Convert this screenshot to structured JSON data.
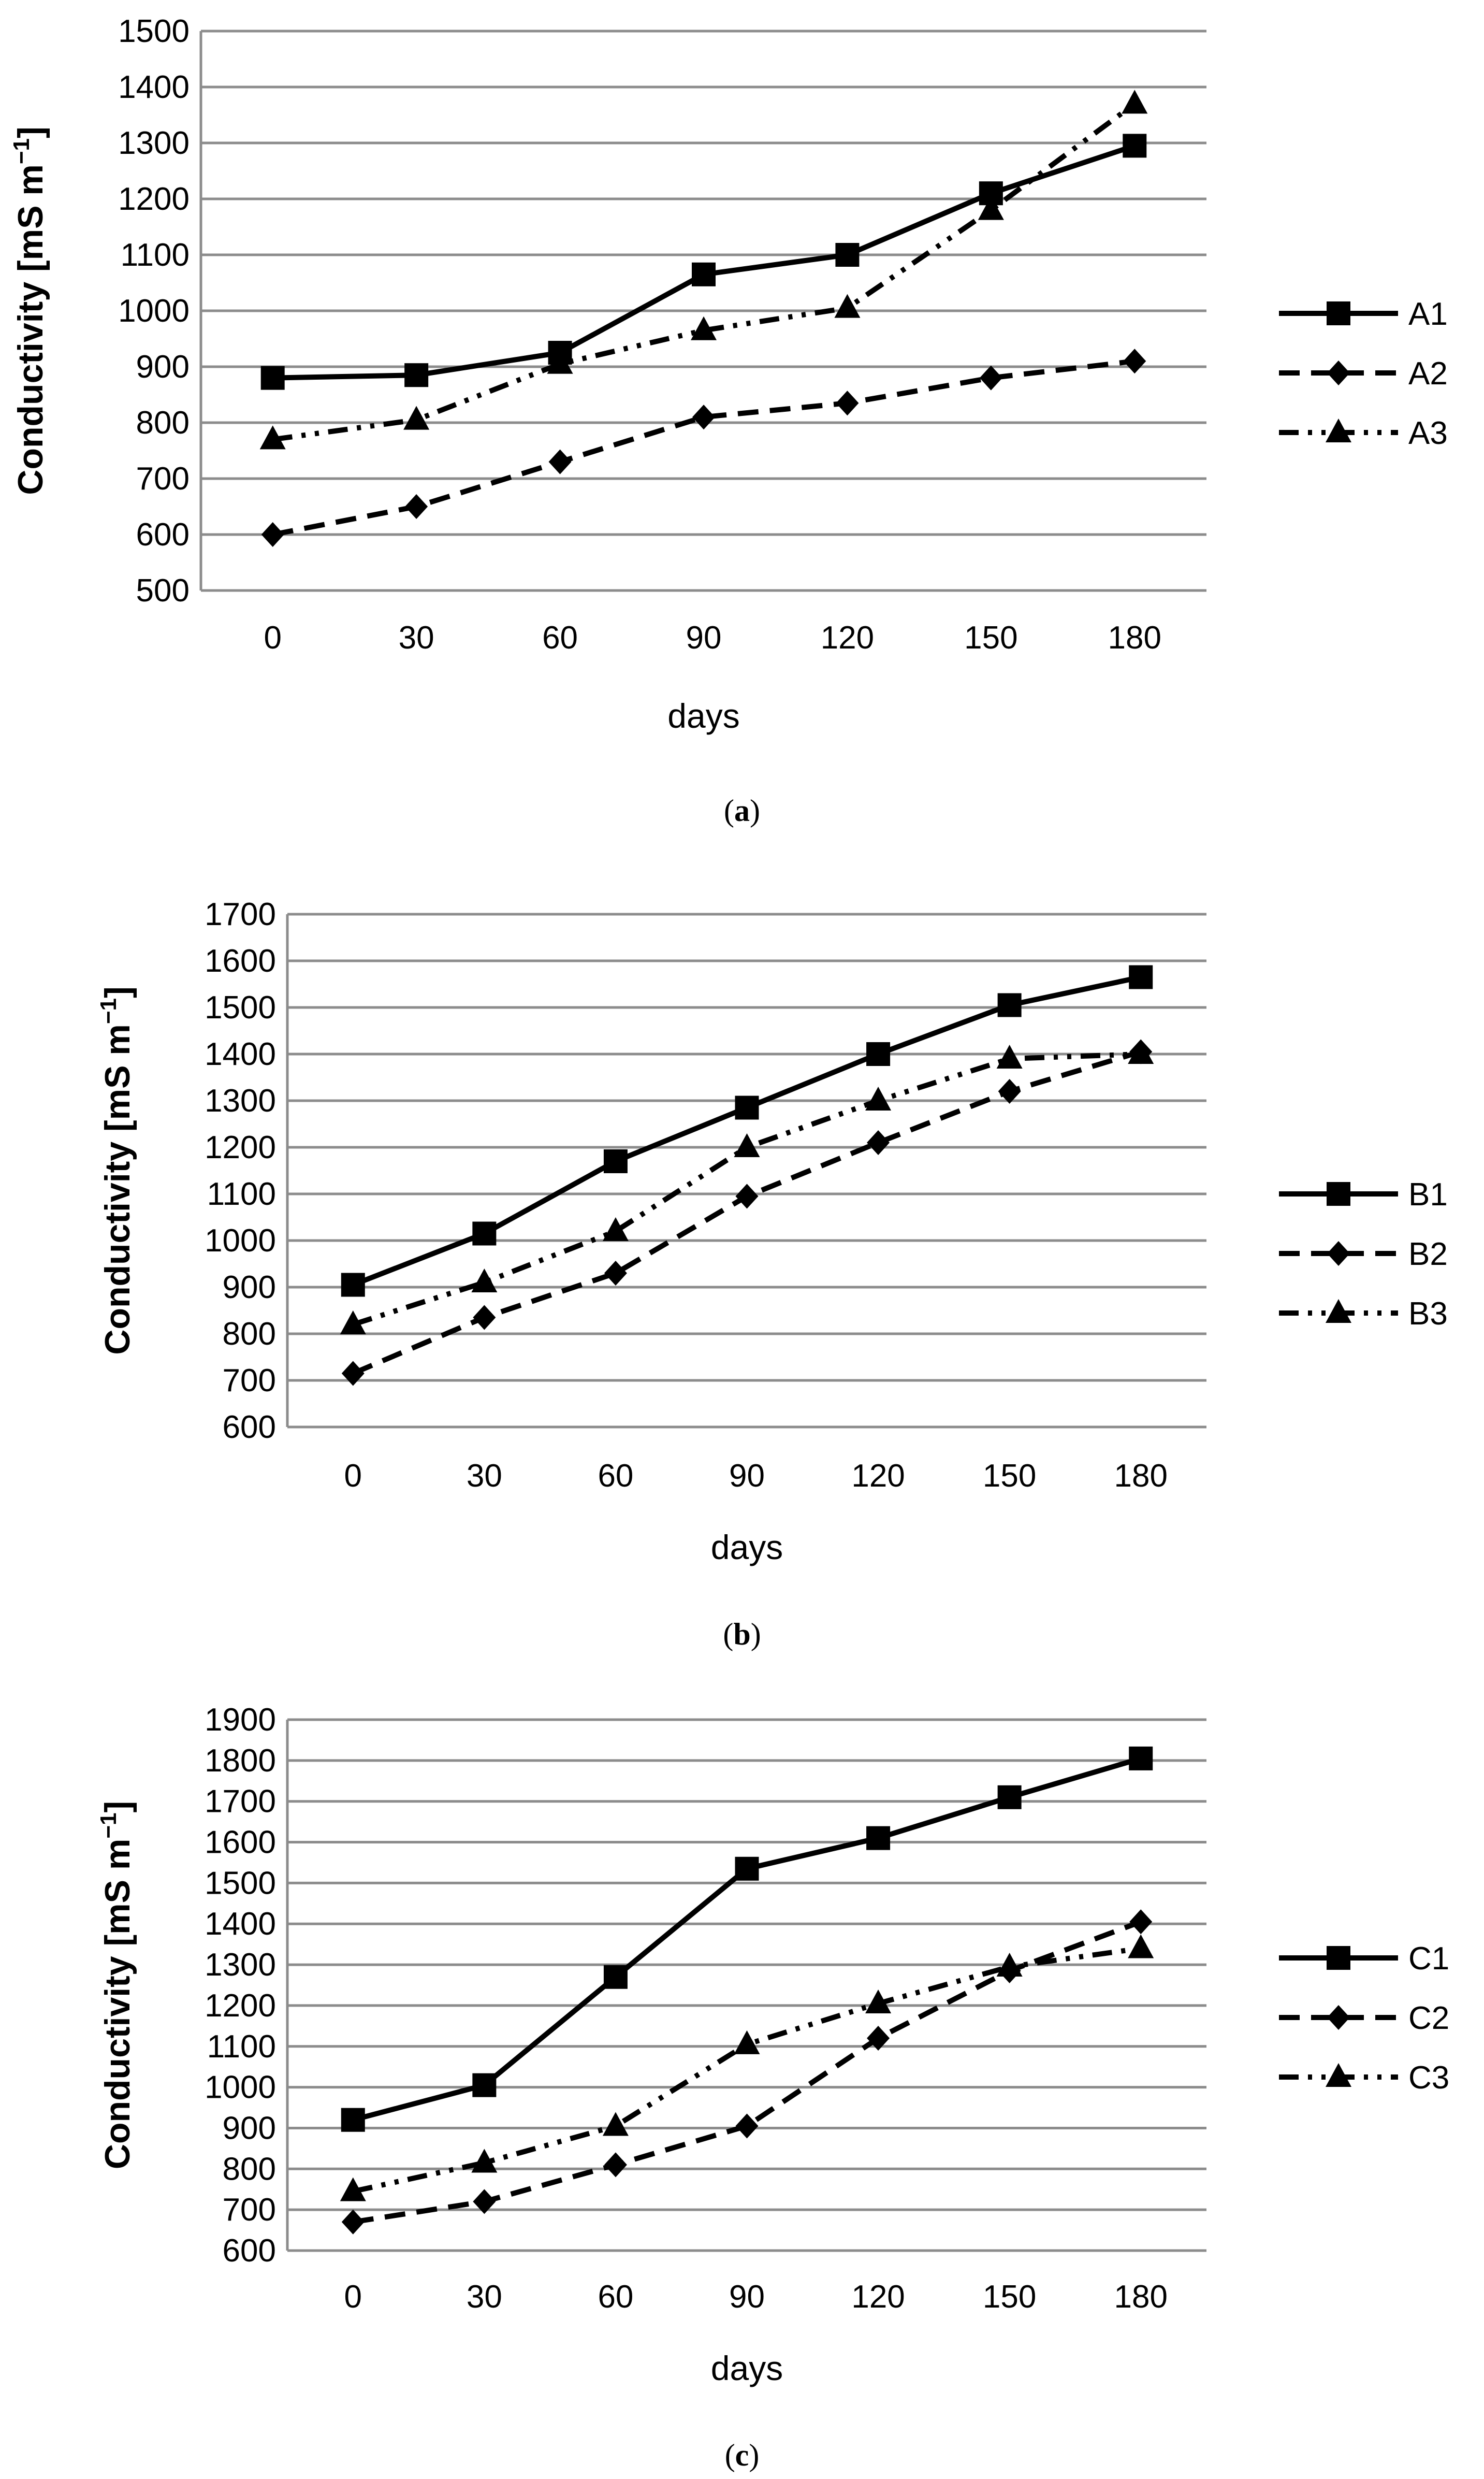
{
  "chart_data": [
    {
      "type": "line",
      "panel": "(a)",
      "caption_open": "(",
      "caption_letter": "a",
      "caption_close": ")",
      "xlabel": "days",
      "ylabel": "Conductivity [mS m",
      "ylabel_sup": "−1",
      "ylabel_close": "]",
      "ylim": [
        500,
        1500
      ],
      "ystep": 100,
      "categories": [
        "0",
        "30",
        "60",
        "90",
        "120",
        "150",
        "180"
      ],
      "yticks": [
        "500",
        "600",
        "700",
        "800",
        "900",
        "1000",
        "1100",
        "1200",
        "1300",
        "1400",
        "1500"
      ],
      "grid": true,
      "legend_position": "right",
      "series": [
        {
          "name": "A1",
          "marker": "square",
          "dash": "solid",
          "values": [
            880,
            885,
            925,
            1065,
            1100,
            1210,
            1295
          ]
        },
        {
          "name": "A2",
          "marker": "diamond",
          "dash": "dash",
          "values": [
            600,
            650,
            730,
            810,
            835,
            880,
            910
          ]
        },
        {
          "name": "A3",
          "marker": "triangle",
          "dash": "dashdotdot",
          "values": [
            770,
            805,
            905,
            965,
            1005,
            1180,
            1370
          ]
        }
      ]
    },
    {
      "type": "line",
      "panel": "(b)",
      "caption_open": "(",
      "caption_letter": "b",
      "caption_close": ")",
      "xlabel": "days",
      "ylabel": "Conductivity [mS m",
      "ylabel_sup": "−1",
      "ylabel_close": "]",
      "ylim": [
        600,
        1700
      ],
      "ystep": 100,
      "categories": [
        "0",
        "30",
        "60",
        "90",
        "120",
        "150",
        "180"
      ],
      "yticks": [
        "600",
        "700",
        "800",
        "900",
        "1000",
        "1100",
        "1200",
        "1300",
        "1400",
        "1500",
        "1600",
        "1700"
      ],
      "grid": true,
      "legend_position": "right",
      "series": [
        {
          "name": "B1",
          "marker": "square",
          "dash": "solid",
          "values": [
            905,
            1015,
            1170,
            1285,
            1400,
            1505,
            1565
          ]
        },
        {
          "name": "B2",
          "marker": "diamond",
          "dash": "dash",
          "values": [
            715,
            835,
            930,
            1095,
            1210,
            1320,
            1405
          ]
        },
        {
          "name": "B3",
          "marker": "triangle",
          "dash": "dashdotdot",
          "values": [
            820,
            910,
            1020,
            1200,
            1300,
            1390,
            1400
          ]
        }
      ]
    },
    {
      "type": "line",
      "panel": "(c)",
      "caption_open": "(",
      "caption_letter": "c",
      "caption_close": ")",
      "xlabel": "days",
      "ylabel": "Conductivity [mS m",
      "ylabel_sup": "−1",
      "ylabel_close": "]",
      "ylim": [
        600,
        1900
      ],
      "ystep": 100,
      "categories": [
        "0",
        "30",
        "60",
        "90",
        "120",
        "150",
        "180"
      ],
      "yticks": [
        "600",
        "700",
        "800",
        "900",
        "1000",
        "1100",
        "1200",
        "1300",
        "1400",
        "1500",
        "1600",
        "1700",
        "1800",
        "1900"
      ],
      "grid": true,
      "legend_position": "right",
      "series": [
        {
          "name": "C1",
          "marker": "square",
          "dash": "solid",
          "values": [
            920,
            1005,
            1270,
            1535,
            1610,
            1710,
            1805
          ]
        },
        {
          "name": "C2",
          "marker": "diamond",
          "dash": "dash",
          "values": [
            670,
            720,
            810,
            905,
            1120,
            1285,
            1405
          ]
        },
        {
          "name": "C3",
          "marker": "triangle",
          "dash": "dashdotdot",
          "values": [
            745,
            815,
            905,
            1105,
            1205,
            1295,
            1340
          ]
        }
      ]
    }
  ]
}
